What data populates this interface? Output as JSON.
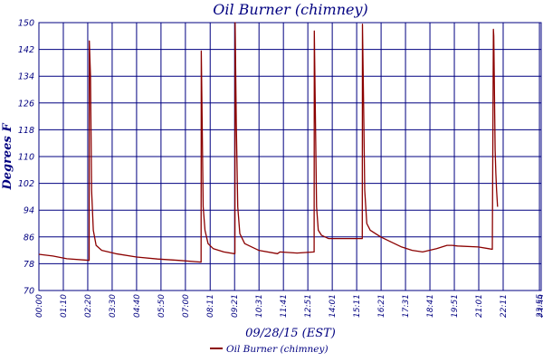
{
  "chart_data": {
    "type": "line",
    "title": "Oil Burner (chimney)",
    "xlabel": "09/28/15 (EST)",
    "ylabel": "Degrees F",
    "ylim": [
      70,
      150
    ],
    "yticks": [
      70,
      78,
      86,
      94,
      102,
      110,
      118,
      126,
      134,
      142,
      150
    ],
    "xlim": [
      0,
      1440
    ],
    "xticks": [
      {
        "t": 0,
        "label": "00:00"
      },
      {
        "t": 70,
        "label": "01:10"
      },
      {
        "t": 140,
        "label": "02:20"
      },
      {
        "t": 210,
        "label": "03:30"
      },
      {
        "t": 280,
        "label": "04:40"
      },
      {
        "t": 350,
        "label": "05:50"
      },
      {
        "t": 420,
        "label": "07:00"
      },
      {
        "t": 491,
        "label": "08:11"
      },
      {
        "t": 561,
        "label": "09:21"
      },
      {
        "t": 631,
        "label": "10:31"
      },
      {
        "t": 701,
        "label": "11:41"
      },
      {
        "t": 771,
        "label": "12:51"
      },
      {
        "t": 841,
        "label": "14:01"
      },
      {
        "t": 911,
        "label": "15:11"
      },
      {
        "t": 981,
        "label": "16:21"
      },
      {
        "t": 1051,
        "label": "17:31"
      },
      {
        "t": 1121,
        "label": "18:41"
      },
      {
        "t": 1191,
        "label": "19:51"
      },
      {
        "t": 1261,
        "label": "21:01"
      },
      {
        "t": 1331,
        "label": "22:11"
      },
      {
        "t": 1435,
        "label": "23:55"
      },
      {
        "t": 1440,
        "label": "23:59"
      }
    ],
    "grid": true,
    "legend_position": "bottom",
    "series": [
      {
        "name": "Oil Burner (chimney)",
        "color": "#8b0000",
        "x": [
          0,
          40,
          80,
          144,
          144.5,
          148,
          151,
          156,
          164,
          180,
          220,
          280,
          340,
          400,
          465,
          465.5,
          468,
          471,
          476,
          485,
          500,
          530,
          560,
          562,
          562.5,
          566,
          570,
          576,
          590,
          630,
          684,
          691,
          740,
          789,
          789.5,
          793,
          796,
          801,
          810,
          830,
          870,
          927,
          927.5,
          931,
          934,
          940,
          950,
          980,
          1010,
          1040,
          1070,
          1100,
          1140,
          1170,
          1185,
          1200,
          1260,
          1290,
          1300,
          1303,
          1304,
          1306,
          1308,
          1310,
          1312,
          1315
        ],
        "y": [
          80.8,
          80.3,
          79.5,
          79,
          144.5,
          134,
          100,
          88,
          83.5,
          82,
          81,
          80,
          79.4,
          79,
          78.5,
          141.5,
          120,
          95,
          88,
          84,
          82.5,
          81.5,
          81,
          81,
          150,
          120,
          95,
          87,
          84,
          82,
          81,
          81.5,
          81.2,
          81.5,
          147.5,
          120,
          95,
          88,
          86.5,
          85.5,
          85.5,
          85.5,
          149.5,
          125,
          100,
          90,
          88,
          86,
          84.5,
          83,
          82,
          81.5,
          82.5,
          83.5,
          83.5,
          83.3,
          83,
          82.5,
          82.3,
          148,
          146,
          128,
          112,
          105,
          100,
          95
        ]
      }
    ]
  }
}
